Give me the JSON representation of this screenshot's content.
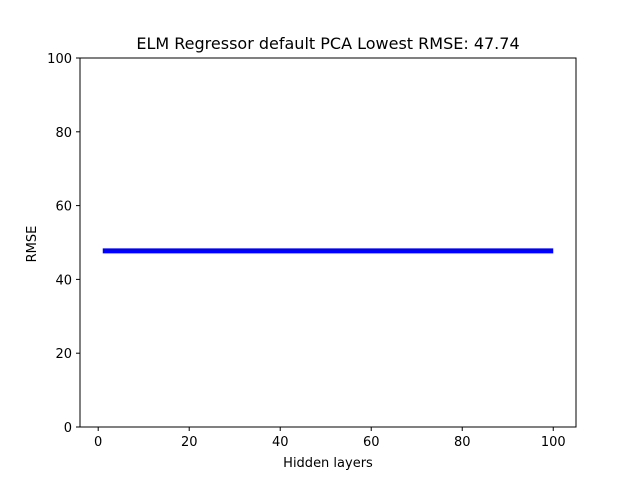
{
  "chart_data": {
    "type": "line",
    "title": "ELM Regressor default PCA Lowest RMSE: 47.74",
    "xlabel": "Hidden layers",
    "ylabel": "RMSE",
    "xlim": [
      -4,
      105
    ],
    "ylim": [
      0,
      100
    ],
    "xticks": [
      0,
      20,
      40,
      60,
      80,
      100
    ],
    "yticks": [
      0,
      20,
      40,
      60,
      80,
      100
    ],
    "grid": false,
    "series": [
      {
        "color": "#0000ff",
        "x": [
          1,
          100
        ],
        "y": [
          47.74,
          47.74
        ]
      }
    ]
  }
}
